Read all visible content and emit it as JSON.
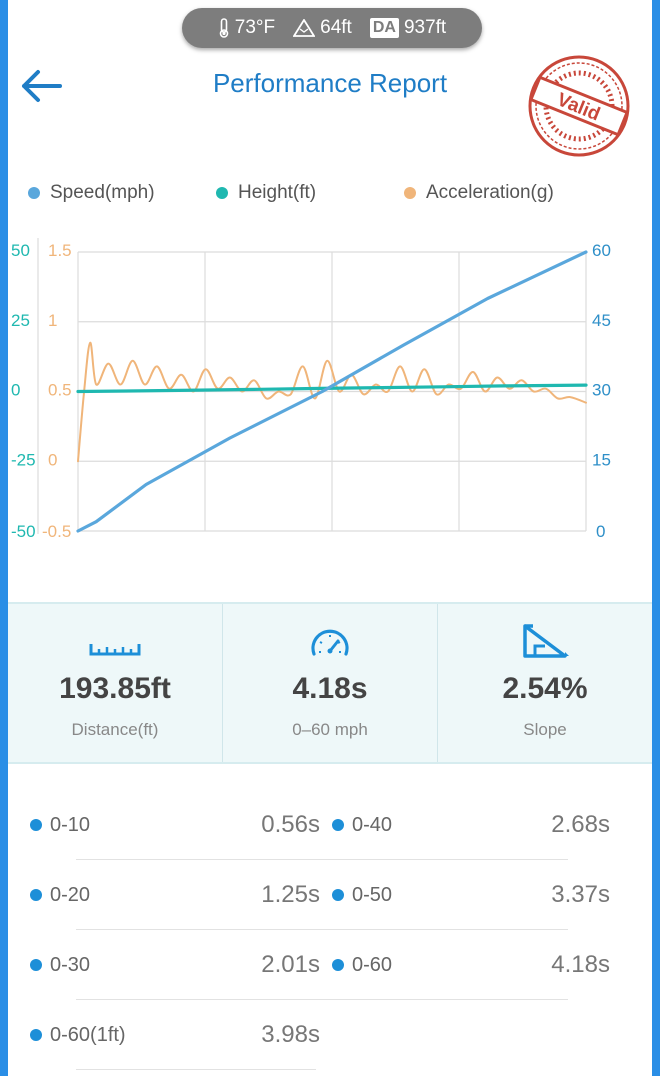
{
  "status": {
    "temperature": "73°F",
    "altitude": "64ft",
    "da_label": "DA",
    "density_altitude": "937ft",
    "icons": [
      "thermometer-icon",
      "mountain-icon"
    ]
  },
  "header": {
    "title": "Performance Report",
    "back_icon": "arrow-left-icon",
    "stamp_text": "Valid"
  },
  "legend": [
    {
      "label": "Speed(mph)",
      "color": "#5aa7dc"
    },
    {
      "label": "Height(ft)",
      "color": "#1fb8b0"
    },
    {
      "label": "Acceleration(g)",
      "color": "#f0b57a"
    }
  ],
  "chart_data": {
    "type": "line",
    "axes": {
      "left_height": {
        "ticks": [
          "50",
          "25",
          "0",
          "-25",
          "-50"
        ],
        "range": [
          -50,
          50
        ],
        "color": "#1fb8b0"
      },
      "left_accel": {
        "ticks": [
          "1.5",
          "1",
          "0.5",
          "0",
          "-0.5"
        ],
        "range": [
          -0.5,
          1.5
        ],
        "color": "#f0b57a"
      },
      "right_speed": {
        "ticks": [
          "60",
          "45",
          "30",
          "15",
          "0"
        ],
        "range": [
          0,
          60
        ],
        "color": "#2e8fc8"
      }
    },
    "grid": true,
    "duration_s": 4.18,
    "series": [
      {
        "name": "Speed(mph)",
        "axis": "right_speed",
        "color": "#5aa7dc",
        "x": [
          0,
          0.15,
          0.56,
          1.25,
          2.01,
          2.68,
          3.37,
          4.18
        ],
        "y": [
          0,
          2,
          10,
          20,
          30,
          40,
          50,
          60
        ]
      },
      {
        "name": "Height(ft)",
        "axis": "left_height",
        "color": "#1fb8b0",
        "x": [
          0,
          0.5,
          1.0,
          1.5,
          2.0,
          2.5,
          3.0,
          3.5,
          4.18
        ],
        "y": [
          0,
          0.2,
          0.5,
          0.8,
          1.1,
          1.4,
          1.7,
          2.0,
          2.3
        ]
      },
      {
        "name": "Acceleration(g)",
        "axis": "left_accel",
        "color": "#f0b57a",
        "x": [
          0,
          0.05,
          0.1,
          0.15,
          0.25,
          0.35,
          0.45,
          0.55,
          0.65,
          0.75,
          0.85,
          0.95,
          1.05,
          1.15,
          1.25,
          1.35,
          1.45,
          1.55,
          1.65,
          1.75,
          1.85,
          1.95,
          2.05,
          2.15,
          2.25,
          2.35,
          2.45,
          2.55,
          2.65,
          2.75,
          2.85,
          2.95,
          3.05,
          3.15,
          3.25,
          3.35,
          3.45,
          3.55,
          3.65,
          3.75,
          3.85,
          3.95,
          4.05,
          4.18
        ],
        "y": [
          0,
          0.5,
          0.85,
          0.55,
          0.7,
          0.55,
          0.72,
          0.55,
          0.68,
          0.52,
          0.62,
          0.5,
          0.66,
          0.52,
          0.6,
          0.5,
          0.58,
          0.45,
          0.5,
          0.48,
          0.68,
          0.45,
          0.72,
          0.5,
          0.62,
          0.48,
          0.55,
          0.5,
          0.68,
          0.5,
          0.66,
          0.48,
          0.55,
          0.52,
          0.64,
          0.5,
          0.6,
          0.52,
          0.58,
          0.5,
          0.52,
          0.45,
          0.46,
          0.42
        ]
      }
    ]
  },
  "stats": [
    {
      "value": "193.85ft",
      "label": "Distance(ft)",
      "icon": "ruler-icon"
    },
    {
      "value": "4.18s",
      "label": "0–60 mph",
      "icon": "speedometer-icon"
    },
    {
      "value": "2.54%",
      "label": "Slope",
      "icon": "slope-triangle-icon"
    }
  ],
  "times": [
    {
      "label": "0-10",
      "time": "0.56s"
    },
    {
      "label": "0-40",
      "time": "2.68s"
    },
    {
      "label": "0-20",
      "time": "1.25s"
    },
    {
      "label": "0-50",
      "time": "3.37s"
    },
    {
      "label": "0-30",
      "time": "2.01s"
    },
    {
      "label": "0-60",
      "time": "4.18s"
    },
    {
      "label": "0-60(1ft)",
      "time": "3.98s"
    }
  ]
}
